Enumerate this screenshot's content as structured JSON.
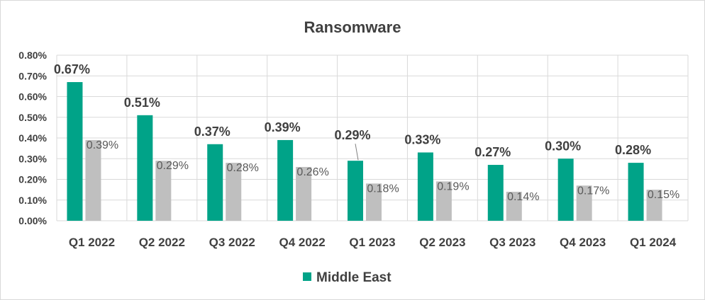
{
  "chart_data": {
    "type": "bar",
    "title": "Ransomware",
    "categories": [
      "Q1 2022",
      "Q2 2022",
      "Q3 2022",
      "Q4 2022",
      "Q1 2023",
      "Q2 2023",
      "Q3 2023",
      "Q4 2023",
      "Q1 2024"
    ],
    "series": [
      {
        "name": "Middle East",
        "color": "#00a388",
        "values": [
          0.67,
          0.51,
          0.37,
          0.39,
          0.29,
          0.33,
          0.27,
          0.3,
          0.28
        ],
        "labels": [
          "0.67%",
          "0.51%",
          "0.37%",
          "0.39%",
          "0.29%",
          "0.33%",
          "0.27%",
          "0.30%",
          "0.28%"
        ]
      },
      {
        "color": "#bfbfbf",
        "values": [
          0.39,
          0.29,
          0.28,
          0.26,
          0.18,
          0.19,
          0.14,
          0.17,
          0.15
        ],
        "labels": [
          "0.39%",
          "0.29%",
          "0.28%",
          "0.26%",
          "0.18%",
          "0.19%",
          "0.14%",
          "0.17%",
          "0.15%"
        ]
      }
    ],
    "y_ticks": [
      "0.00%",
      "0.10%",
      "0.20%",
      "0.30%",
      "0.40%",
      "0.50%",
      "0.60%",
      "0.70%",
      "0.80%"
    ],
    "ylim": [
      0,
      0.8
    ],
    "grid": true,
    "legend_position": "bottom",
    "legend_entries": [
      "Middle East"
    ]
  }
}
